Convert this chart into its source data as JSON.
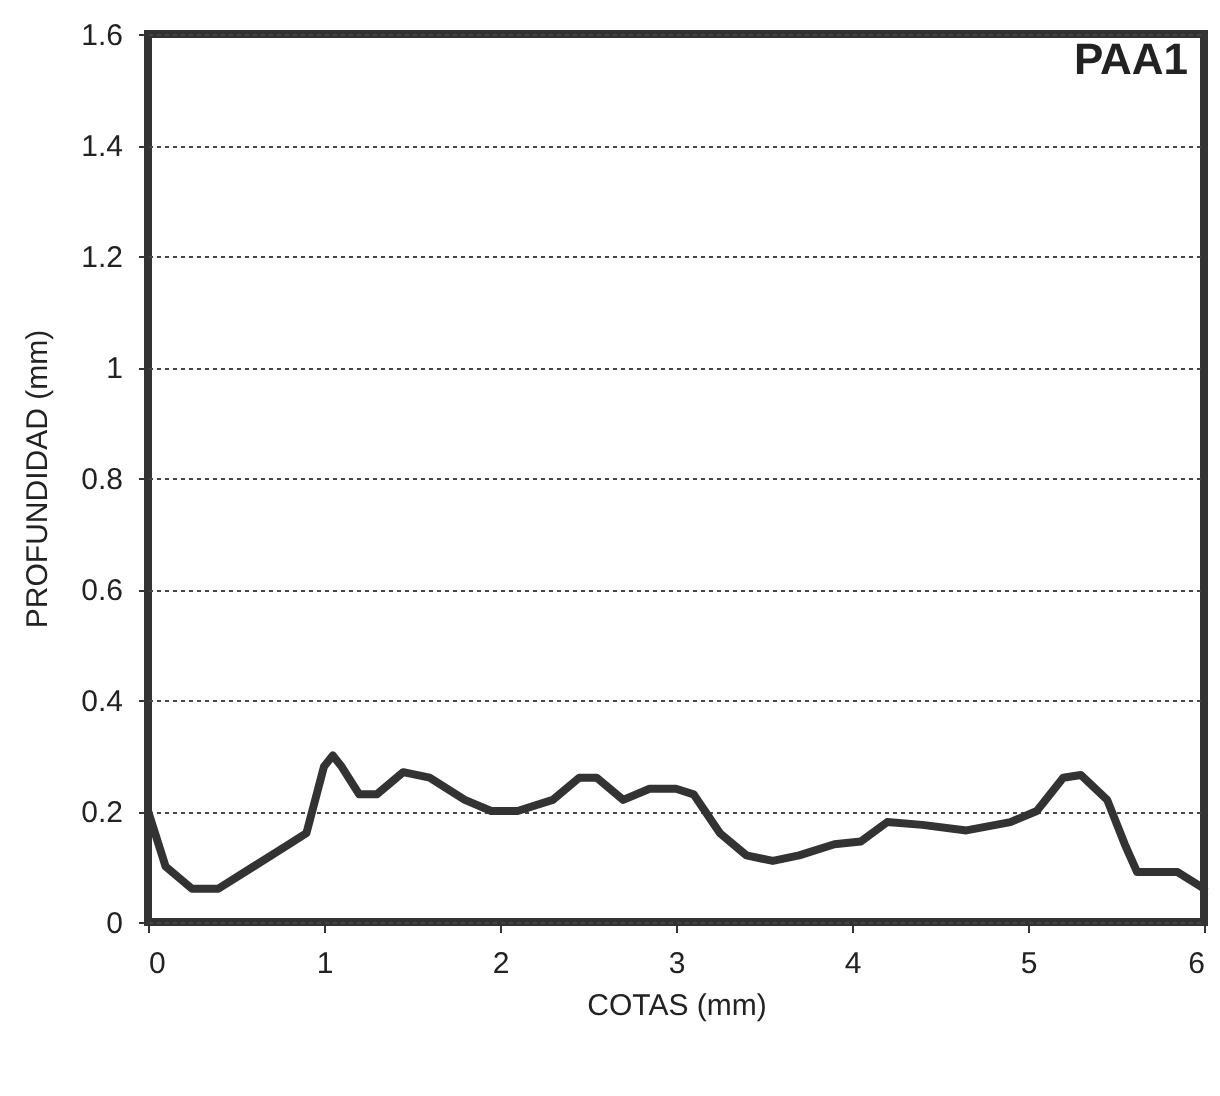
{
  "chart_data": {
    "type": "line",
    "title": "PAA1",
    "xlabel": "COTAS (mm)",
    "ylabel": "PROFUNDIDAD (mm)",
    "x": [
      0,
      0.1,
      0.25,
      0.4,
      0.6,
      0.8,
      0.9,
      1.0,
      1.05,
      1.1,
      1.2,
      1.3,
      1.45,
      1.6,
      1.8,
      1.95,
      2.1,
      2.3,
      2.45,
      2.55,
      2.7,
      2.85,
      3.0,
      3.1,
      3.25,
      3.4,
      3.55,
      3.7,
      3.9,
      4.05,
      4.2,
      4.4,
      4.65,
      4.9,
      5.05,
      5.2,
      5.3,
      5.45,
      5.55,
      5.62,
      5.75,
      5.85,
      6.0
    ],
    "series": [
      {
        "color": "#333333",
        "values": [
          0.2,
          0.1,
          0.06,
          0.06,
          0.1,
          0.14,
          0.16,
          0.28,
          0.3,
          0.28,
          0.23,
          0.23,
          0.27,
          0.26,
          0.22,
          0.2,
          0.2,
          0.22,
          0.26,
          0.26,
          0.22,
          0.24,
          0.24,
          0.23,
          0.16,
          0.12,
          0.11,
          0.12,
          0.14,
          0.145,
          0.18,
          0.175,
          0.165,
          0.18,
          0.2,
          0.26,
          0.265,
          0.22,
          0.14,
          0.09,
          0.09,
          0.09,
          0.06
        ]
      }
    ],
    "xlim": [
      0,
      6
    ],
    "xticks": [
      0,
      1,
      2,
      3,
      4,
      5,
      6
    ],
    "ylim": [
      0,
      1.6
    ],
    "yticks": [
      0,
      0.2,
      0.4,
      0.6,
      0.8,
      1,
      1.2,
      1.4,
      1.6
    ],
    "grid": "y",
    "line_style": "solid",
    "marker": "none"
  }
}
